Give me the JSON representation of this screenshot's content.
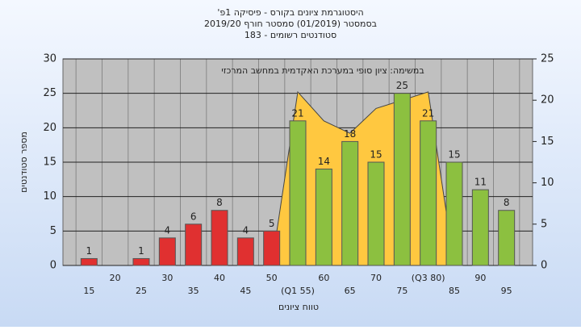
{
  "chart_data": {
    "type": "bar",
    "title": "'היסטוגרמת ציונים בקורס - פיסיקה 1פ",
    "subtitle": "בסמסטר  (01/2019)  סמסטר חורף 2019/20",
    "subtitle2": "סטודנטים רשומים - 183",
    "annotation": "במשימה: ציון סופי במערכת האקדמית במחשב המרכזי",
    "y_label": "מספר סטודנטים",
    "x_label": "טווח ציונים",
    "categories": [
      "15",
      "20",
      "25",
      "30",
      "35",
      "40",
      "45",
      "50",
      "(Q1 55)",
      "60",
      "65",
      "70",
      "75",
      "(Q3 80)",
      "85",
      "90",
      "95"
    ],
    "values": [
      1,
      null,
      1,
      4,
      6,
      8,
      4,
      5,
      21,
      14,
      18,
      15,
      25,
      21,
      15,
      11,
      8
    ],
    "bar_colors": [
      "#e03030",
      null,
      "#e03030",
      "#e03030",
      "#e03030",
      "#e03030",
      "#e03030",
      "#e03030",
      "#8cc040",
      "#8cc040",
      "#8cc040",
      "#8cc040",
      "#8cc040",
      "#8cc040",
      "#8cc040",
      "#8cc040",
      "#8cc040"
    ],
    "area": {
      "axis": "y2",
      "color": "#ffc840",
      "values": [
        null,
        null,
        null,
        null,
        null,
        null,
        null,
        0,
        21,
        17.5,
        16,
        19,
        20,
        21,
        0,
        null,
        null
      ]
    },
    "ylim": [
      0,
      30
    ],
    "yticks": [
      0,
      5,
      10,
      15,
      20,
      25,
      30
    ],
    "y2lim": [
      0,
      25
    ],
    "y2ticks": [
      0,
      5,
      10,
      15,
      20,
      25
    ],
    "grid": true
  }
}
